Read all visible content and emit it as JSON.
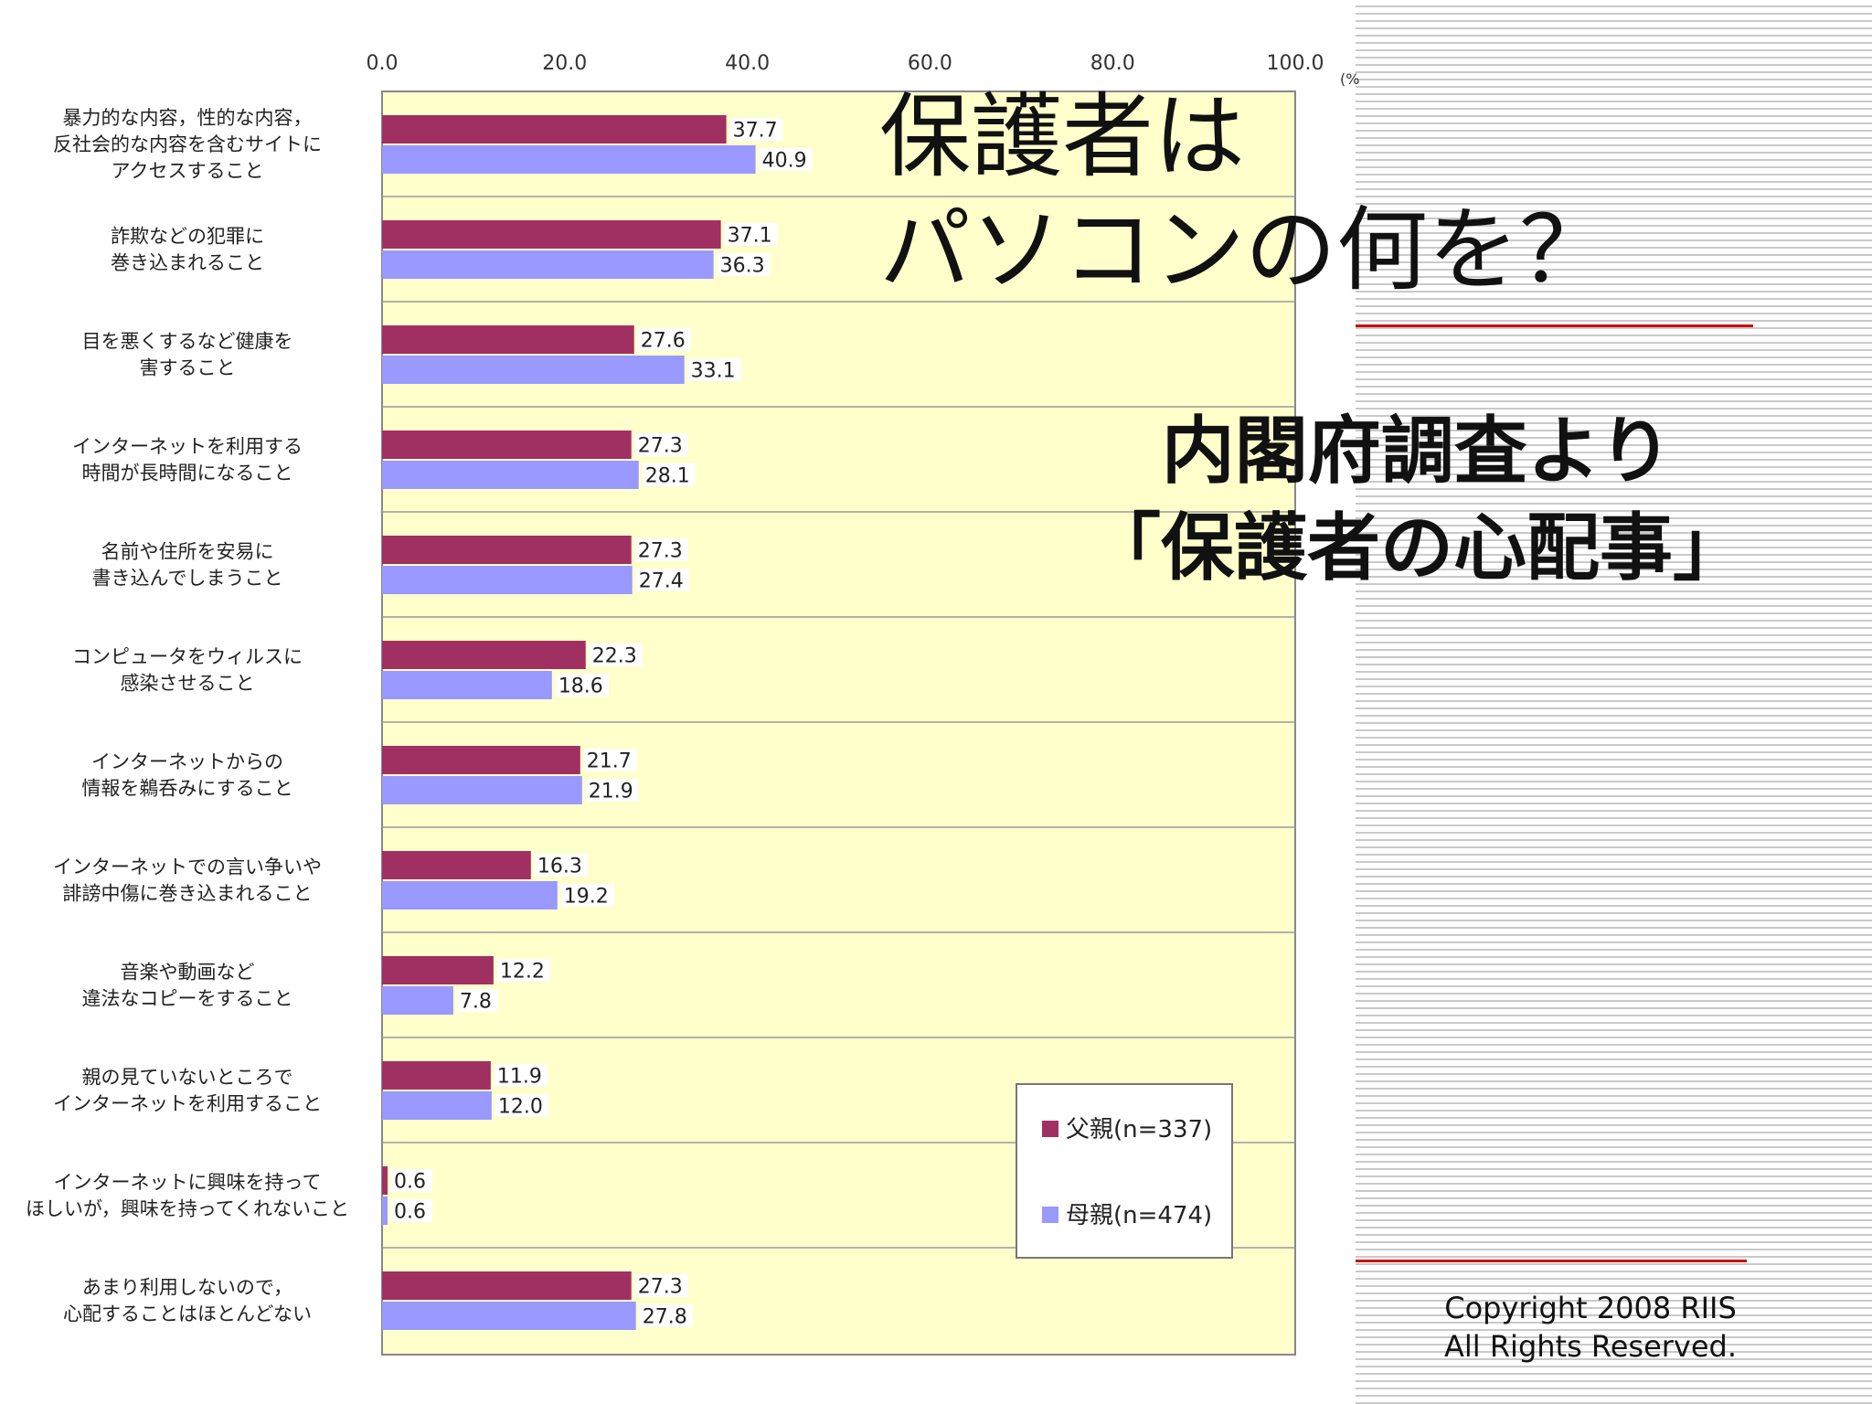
{
  "slide": {
    "title_lines": [
      "保護者は",
      "パソコンの何を？"
    ],
    "subtitle_lines": [
      "内閣府調査より",
      "「保護者の心配事」"
    ],
    "copyright_lines": [
      "Copyright 2008 RIIS",
      "All Rights Reserved."
    ]
  },
  "colors": {
    "father": "#a03062",
    "mother": "#9999ff",
    "plot_bg": "#ffffcc",
    "accent_line": "#cc0000"
  },
  "chart_data": {
    "type": "bar",
    "orientation": "horizontal",
    "x_unit": "(%",
    "xlim": [
      0,
      100
    ],
    "x_ticks": [
      "0.0",
      "20.0",
      "40.0",
      "60.0",
      "80.0",
      "100.0"
    ],
    "categories": [
      [
        "暴力的な内容，性的な内容，",
        "反社会的な内容を含むサイトに",
        "アクセスすること"
      ],
      [
        "詐欺などの犯罪に",
        "巻き込まれること"
      ],
      [
        "目を悪くするなど健康を",
        "害すること"
      ],
      [
        "インターネットを利用する",
        "時間が長時間になること"
      ],
      [
        "名前や住所を安易に",
        "書き込んでしまうこと"
      ],
      [
        "コンピュータをウィルスに",
        "感染させること"
      ],
      [
        "インターネットからの",
        "情報を鵜呑みにすること"
      ],
      [
        "インターネットでの言い争いや",
        "誹謗中傷に巻き込まれること"
      ],
      [
        "音楽や動画など",
        "違法なコピーをすること"
      ],
      [
        "親の見ていないところで",
        "インターネットを利用すること"
      ],
      [
        "インターネットに興味を持って",
        "ほしいが，興味を持ってくれないこと"
      ],
      [
        "あまり利用しないので，",
        "心配することはほとんどない"
      ]
    ],
    "series": [
      {
        "name": "父親(n=337)",
        "values": [
          37.7,
          37.1,
          27.6,
          27.3,
          27.3,
          22.3,
          21.7,
          16.3,
          12.2,
          11.9,
          0.6,
          27.3
        ]
      },
      {
        "name": "母親(n=474)",
        "values": [
          40.9,
          36.3,
          33.1,
          28.1,
          27.4,
          18.6,
          21.9,
          19.2,
          7.8,
          12.0,
          0.6,
          27.8
        ]
      }
    ],
    "value_labels": [
      [
        "37.7",
        "37.1",
        "27.6",
        "27.3",
        "27.3",
        "22.3",
        "21.7",
        "16.3",
        "12.2",
        "11.9",
        "0.6",
        "27.3"
      ],
      [
        "40.9",
        "36.3",
        "33.1",
        "28.1",
        "27.4",
        "18.6",
        "21.9",
        "19.2",
        "7.8",
        "12.0",
        "0.6",
        "27.8"
      ]
    ],
    "legend_position": "bottom-right",
    "grid": true
  }
}
